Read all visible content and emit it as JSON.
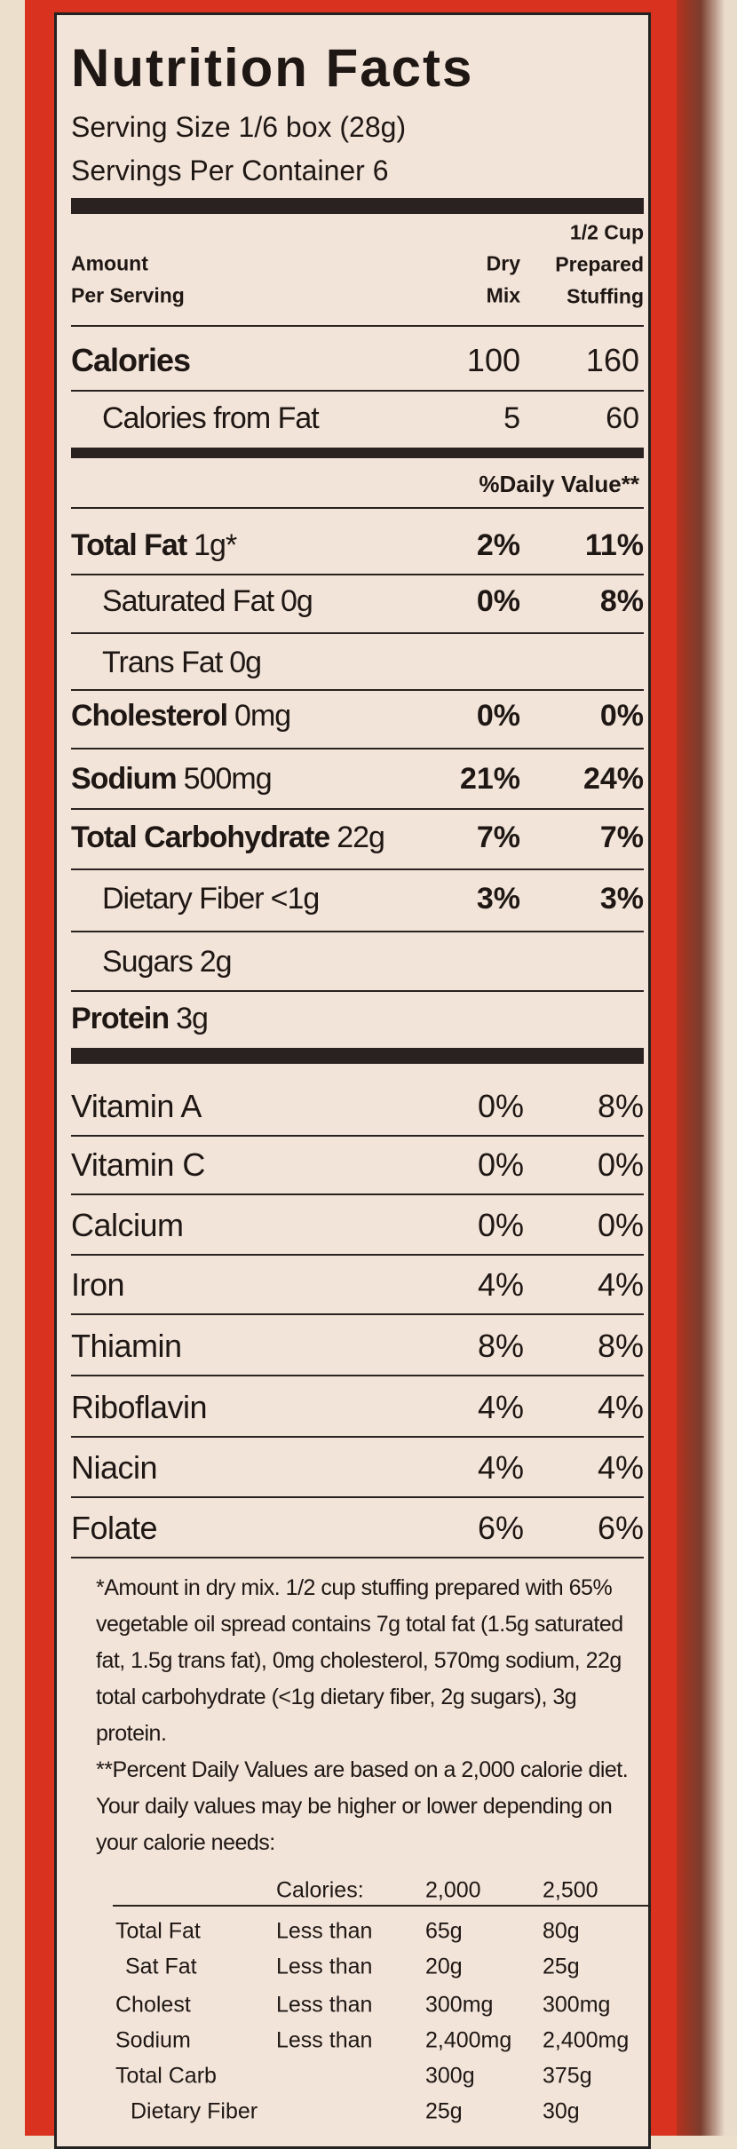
{
  "label": {
    "title": "Nutrition Facts",
    "serving_size": "Serving Size 1/6 box (28g)",
    "servings_per_container": "Servings Per Container 6",
    "column_header": {
      "amount": [
        "Amount",
        "Per Serving"
      ],
      "dry": [
        "Dry",
        "Mix"
      ],
      "prepared": [
        "1/2 Cup",
        "Prepared",
        "Stuffing"
      ]
    },
    "calories": {
      "name": "Calories",
      "dry": 100,
      "prepared": 160
    },
    "calories_from_fat": {
      "name": "Calories from Fat",
      "dry": 5,
      "prepared": 60
    },
    "daily_value_header": "%Daily Value**",
    "nutrients": [
      {
        "name": "Total Fat",
        "amount": "1g*",
        "dry": "2%",
        "prepared": "11%",
        "sub": false
      },
      {
        "name": "Saturated Fat",
        "amount": "0g",
        "dry": "0%",
        "prepared": "8%",
        "sub": true
      },
      {
        "name": "Trans Fat",
        "amount": "0g",
        "sub": true
      },
      {
        "name": "Cholesterol",
        "amount": "0mg",
        "dry": "0%",
        "prepared": "0%",
        "sub": false
      },
      {
        "name": "Sodium",
        "amount": "500mg",
        "dry": "21%",
        "prepared": "24%",
        "sub": false
      },
      {
        "name": "Total Carbohydrate",
        "amount": "22g",
        "dry": "7%",
        "prepared": "7%",
        "sub": false
      },
      {
        "name": "Dietary Fiber",
        "amount": "<1g",
        "dry": "3%",
        "prepared": "3%",
        "sub": true
      },
      {
        "name": "Sugars",
        "amount": "2g",
        "sub": true
      },
      {
        "name": "Protein",
        "amount": "3g",
        "sub": false
      }
    ],
    "vitamins": [
      {
        "name": "Vitamin A",
        "dry": "0%",
        "prepared": "8%"
      },
      {
        "name": "Vitamin C",
        "dry": "0%",
        "prepared": "0%"
      },
      {
        "name": "Calcium",
        "dry": "0%",
        "prepared": "0%"
      },
      {
        "name": "Iron",
        "dry": "4%",
        "prepared": "4%"
      },
      {
        "name": "Thiamin",
        "dry": "8%",
        "prepared": "8%"
      },
      {
        "name": "Riboflavin",
        "dry": "4%",
        "prepared": "4%"
      },
      {
        "name": "Niacin",
        "dry": "4%",
        "prepared": "4%"
      },
      {
        "name": "Folate",
        "dry": "6%",
        "prepared": "6%"
      }
    ],
    "footnote_amount": "*Amount in dry mix. 1/2 cup stuffing prepared with 65% vegetable oil spread contains 7g total fat (1.5g saturated fat, 1.5g trans fat), 0mg cholesterol, 570mg sodium, 22g total carbohydrate (<1g dietary fiber, 2g sugars), 3g protein.",
    "footnote_daily_values": "**Percent Daily Values are based on a 2,000 calorie diet. Your daily values may be higher or lower depending on your calorie needs:",
    "dv_table": {
      "header": {
        "label": "Calories:",
        "c2000": "2,000",
        "c2500": "2,500"
      },
      "rows": [
        {
          "name": "Total Fat",
          "qualifier": "Less than",
          "c2000": "65g",
          "c2500": "80g"
        },
        {
          "name": "Sat Fat",
          "qualifier": "Less than",
          "c2000": "20g",
          "c2500": "25g"
        },
        {
          "name": "Cholest",
          "qualifier": "Less than",
          "c2000": "300mg",
          "c2500": "300mg"
        },
        {
          "name": "Sodium",
          "qualifier": "Less than",
          "c2000": "2,400mg",
          "c2500": "2,400mg"
        },
        {
          "name": "Total Carb",
          "c2000": "300g",
          "c2500": "375g"
        },
        {
          "name": "Dietary Fiber",
          "c2000": "25g",
          "c2500": "30g"
        }
      ]
    }
  }
}
